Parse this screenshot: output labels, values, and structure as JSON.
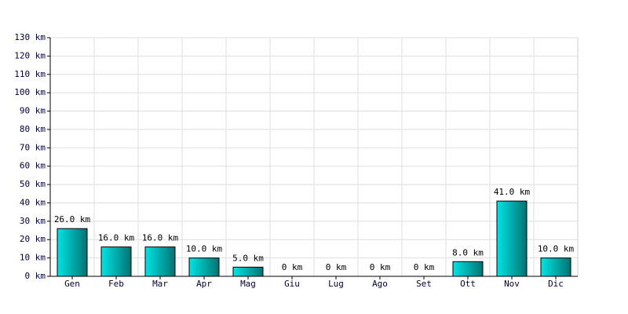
{
  "chart_data": {
    "type": "bar",
    "categories": [
      "Gen",
      "Feb",
      "Mar",
      "Apr",
      "Mag",
      "Giu",
      "Lug",
      "Ago",
      "Set",
      "Ott",
      "Nov",
      "Dic"
    ],
    "values": [
      26,
      16,
      16,
      10,
      5,
      0,
      0,
      0,
      0,
      8,
      41,
      10
    ],
    "value_labels": [
      "26.0 km",
      "16.0 km",
      "16.0 km",
      "10.0 km",
      "5.0 km",
      "0 km",
      "0 km",
      "0 km",
      "0 km",
      "8.0 km",
      "41.0 km",
      "10.0 km"
    ],
    "color": "#00e4e4",
    "ylim": [
      0,
      130
    ],
    "yticks": [
      {
        "value": 0,
        "label": "0 km"
      },
      {
        "value": 10,
        "label": "10 km"
      },
      {
        "value": 20,
        "label": "20 km"
      },
      {
        "value": 30,
        "label": "30 km"
      },
      {
        "value": 40,
        "label": "40 km"
      },
      {
        "value": 50,
        "label": "50 km"
      },
      {
        "value": 60,
        "label": "60 km"
      },
      {
        "value": 70,
        "label": "70 km"
      },
      {
        "value": 80,
        "label": "80 km"
      },
      {
        "value": 90,
        "label": "90 km"
      },
      {
        "value": 100,
        "label": "100 km"
      },
      {
        "value": 110,
        "label": "110 km"
      },
      {
        "value": 120,
        "label": "120 km"
      },
      {
        "value": 130,
        "label": "130 km"
      }
    ],
    "grid": true
  }
}
